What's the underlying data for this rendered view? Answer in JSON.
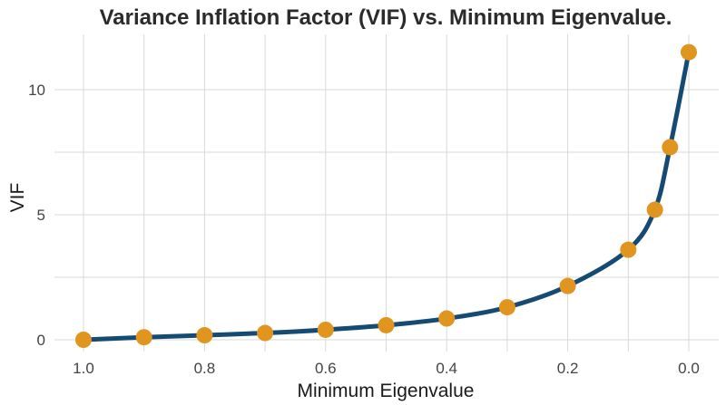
{
  "chart_data": {
    "type": "line",
    "title": "Variance Inflation Factor (VIF) vs. Minimum Eigenvalue.",
    "xlabel": "Minimum Eigenvalue",
    "ylabel": "VIF",
    "x_reversed": true,
    "xlim": [
      1.0,
      0.0
    ],
    "ylim": [
      0,
      11.6
    ],
    "x_ticks": [
      1.0,
      0.8,
      0.6,
      0.4,
      0.2,
      0.0
    ],
    "x_tick_labels": [
      "1.0",
      "0.8",
      "0.6",
      "0.4",
      "0.2",
      "0.0"
    ],
    "y_ticks": [
      0,
      5,
      10
    ],
    "y_tick_labels": [
      "0",
      "5",
      "10"
    ],
    "grid": true,
    "series": [
      {
        "values_x": [
          1.0,
          0.9,
          0.8,
          0.7,
          0.6,
          0.5,
          0.4,
          0.3,
          0.2,
          0.1,
          0.056,
          0.031,
          0.0
        ],
        "values_y": [
          0.0,
          0.1,
          0.18,
          0.27,
          0.4,
          0.58,
          0.85,
          1.3,
          2.15,
          3.6,
          5.2,
          7.7,
          11.5
        ],
        "line_color": "#154a73",
        "marker_color": "#e0951f"
      }
    ]
  }
}
